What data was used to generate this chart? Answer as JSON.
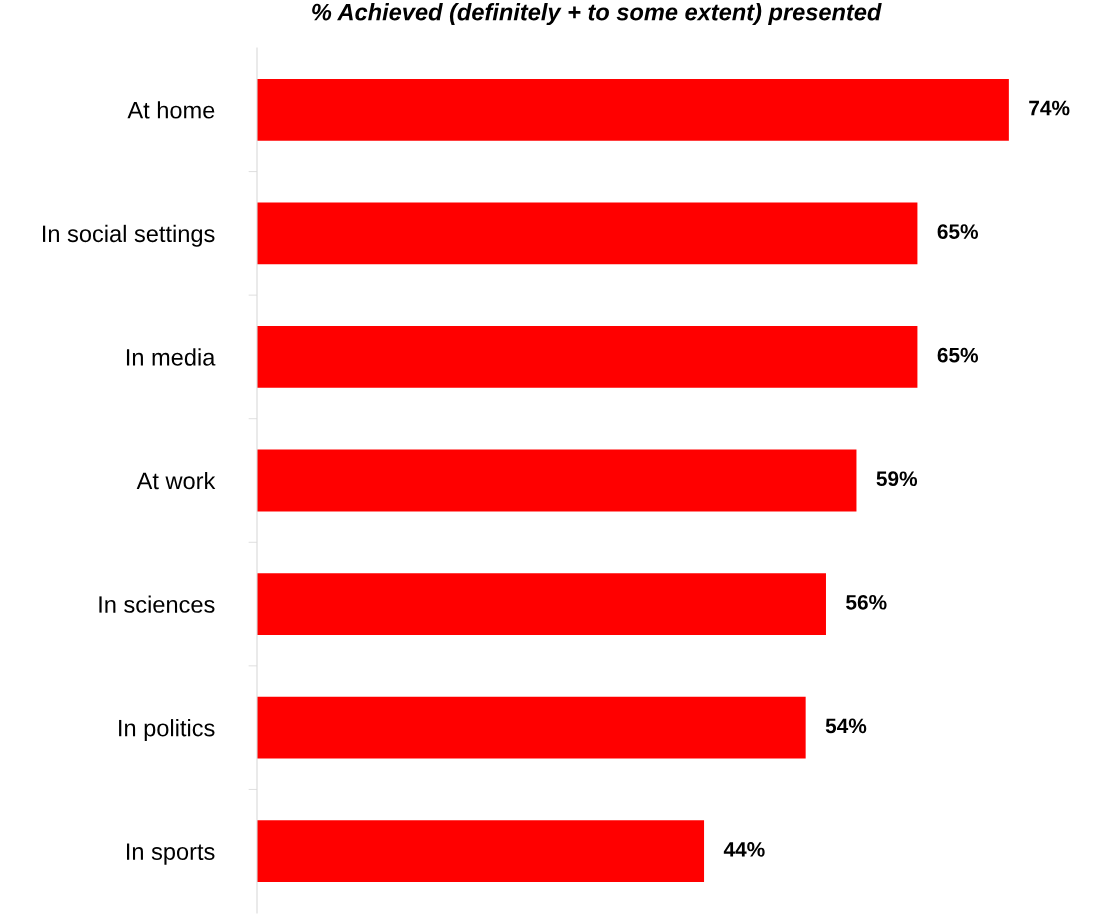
{
  "chart_data": {
    "type": "bar",
    "orientation": "horizontal",
    "title": "% Achieved (definitely + to some extent) presented",
    "categories": [
      "At home",
      "In social settings",
      "In media",
      "At work",
      "In sciences",
      "In politics",
      "In sports"
    ],
    "values": [
      74,
      65,
      65,
      59,
      56,
      54,
      44
    ],
    "value_labels": [
      "74%",
      "65%",
      "65%",
      "59%",
      "56%",
      "54%",
      "44%"
    ],
    "color": "#ff0000"
  }
}
